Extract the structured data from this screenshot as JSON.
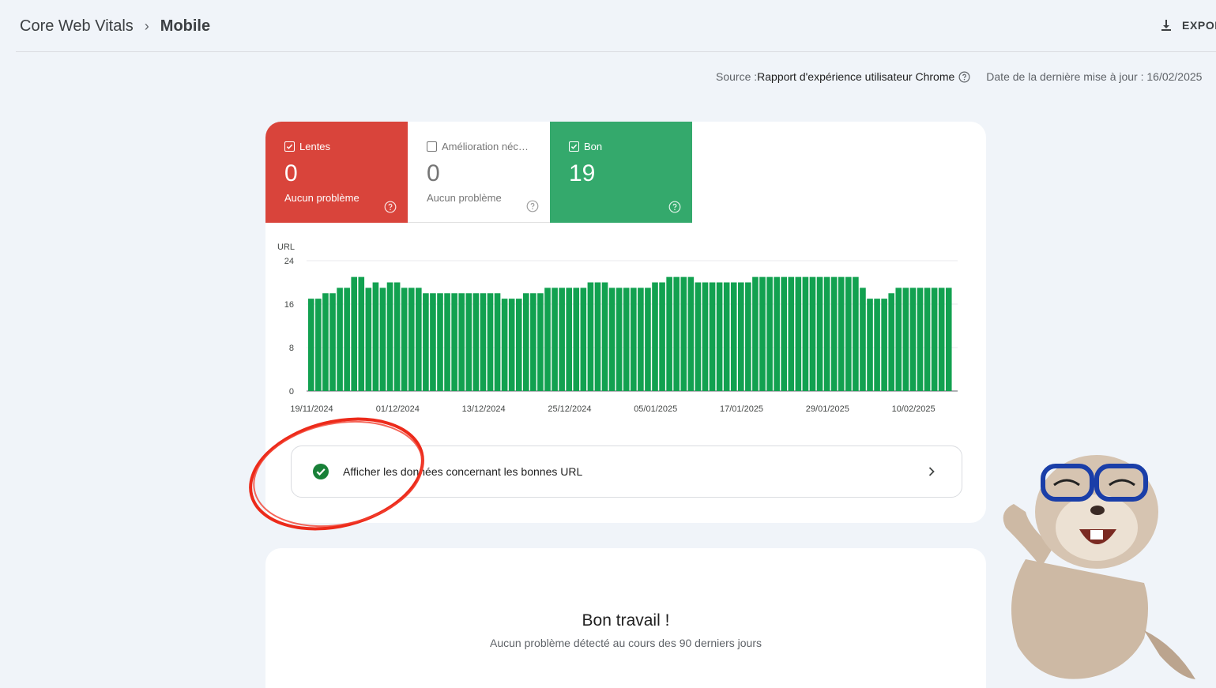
{
  "header": {
    "breadcrumb_root": "Core Web Vitals",
    "breadcrumb_separator": "›",
    "breadcrumb_current": "Mobile",
    "export_label": "EXPORTER"
  },
  "source": {
    "label": "Source : ",
    "value": "Rapport d'expérience utilisateur Chrome",
    "date_label": "Date de la dernière mise à jour : 16/02/2025"
  },
  "tiles": [
    {
      "label": "Lentes",
      "value": "0",
      "sub": "Aucun problème",
      "checked": true,
      "color": "#d9443b"
    },
    {
      "label": "Amélioration néc…",
      "value": "0",
      "sub": "Aucun problème",
      "checked": false,
      "color": "#ffffff"
    },
    {
      "label": "Bon",
      "value": "19",
      "sub": "",
      "checked": true,
      "color": "#34a96c"
    }
  ],
  "chart_data": {
    "type": "bar",
    "ylabel": "URL",
    "ylim": [
      0,
      24
    ],
    "yticks": [
      "24",
      "16",
      "8",
      "0"
    ],
    "xtick_labels": [
      "19/11/2024",
      "01/12/2024",
      "13/12/2024",
      "25/12/2024",
      "05/01/2025",
      "17/01/2025",
      "29/01/2025",
      "10/02/2025"
    ],
    "color": "#12a150",
    "grid": true,
    "values": [
      17,
      17,
      18,
      18,
      19,
      19,
      21,
      21,
      19,
      20,
      19,
      20,
      20,
      19,
      19,
      19,
      18,
      18,
      18,
      18,
      18,
      18,
      18,
      18,
      18,
      18,
      18,
      17,
      17,
      17,
      18,
      18,
      18,
      19,
      19,
      19,
      19,
      19,
      19,
      20,
      20,
      20,
      19,
      19,
      19,
      19,
      19,
      19,
      20,
      20,
      21,
      21,
      21,
      21,
      20,
      20,
      20,
      20,
      20,
      20,
      20,
      20,
      21,
      21,
      21,
      21,
      21,
      21,
      21,
      21,
      21,
      21,
      21,
      21,
      21,
      21,
      21,
      19,
      17,
      17,
      17,
      18,
      19,
      19,
      19,
      19,
      19,
      19,
      19,
      19
    ]
  },
  "good_link": {
    "label": "Afficher les données concernant les bonnes URL"
  },
  "summary": {
    "title": "Bon travail !",
    "subtitle": "Aucun problème détecté au cours des 90 derniers jours"
  }
}
